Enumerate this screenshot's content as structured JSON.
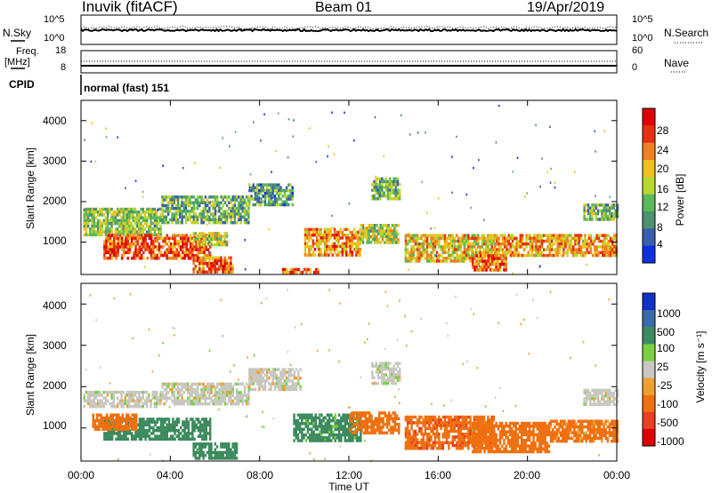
{
  "header": {
    "title": "Inuvik (fitACF)",
    "beam": "Beam 01",
    "date": "19/Apr/2019"
  },
  "noise_panel": {
    "left_label": "N.Sky",
    "right_label": "N.Search",
    "left_ticks": [
      "10^5",
      "10^0"
    ],
    "right_ticks": [
      "10^5",
      "10^0"
    ]
  },
  "freq_panel": {
    "left_label_1": "Freq.",
    "left_label_2": "[MHz]",
    "right_label": "Nave",
    "left_ticks": [
      "18",
      "8"
    ],
    "right_ticks": [
      "60",
      "0"
    ],
    "freq_mhz": 10.5,
    "nave": 20
  },
  "cpid": {
    "label": "CPID",
    "value": "normal (fast) 151"
  },
  "x_axis": {
    "label": "Time UT",
    "ticks": [
      "00:00",
      "04:00",
      "08:00",
      "12:00",
      "16:00",
      "20:00",
      "00:00"
    ],
    "range_hours": [
      0,
      24
    ]
  },
  "colors": {
    "power": [
      "#1030e0",
      "#3a5fb0",
      "#4f9070",
      "#5cb85c",
      "#b8d830",
      "#f0c020",
      "#f08020",
      "#e83010",
      "#e00000"
    ],
    "velocity": [
      "#1030c8",
      "#3a6aa8",
      "#3d8b5e",
      "#7bd040",
      "#c8c8c0",
      "#f0a030",
      "#f07010",
      "#e84020",
      "#e00000"
    ]
  },
  "chart_data": [
    {
      "type": "heatmap",
      "title": "",
      "xlabel": "",
      "ylabel": "Slant Range [km]",
      "y_ticks": [
        "1000",
        "2000",
        "3000",
        "4000"
      ],
      "ylim": [
        200,
        4500
      ],
      "xlim": [
        0,
        24
      ],
      "colorbar_label": "Power [dB]",
      "colorbar_ticks": [
        "4",
        "8",
        "12",
        "16",
        "20",
        "24",
        "28"
      ],
      "colorbar_range": [
        0,
        32
      ],
      "echo_regions": [
        {
          "t0": 0.1,
          "t1": 3.6,
          "r0": 1200,
          "r1": 1850,
          "value": 14
        },
        {
          "t0": 3.6,
          "t1": 7.5,
          "r0": 1500,
          "r1": 2150,
          "value": 12
        },
        {
          "t0": 7.5,
          "t1": 9.5,
          "r0": 1900,
          "r1": 2450,
          "value": 10
        },
        {
          "t0": 1.0,
          "t1": 5.8,
          "r0": 600,
          "r1": 1200,
          "value": 26
        },
        {
          "t0": 5.0,
          "t1": 6.5,
          "r0": 900,
          "r1": 1250,
          "value": 16
        },
        {
          "t0": 5.0,
          "t1": 6.8,
          "r0": 250,
          "r1": 650,
          "value": 24
        },
        {
          "t0": 9.0,
          "t1": 10.6,
          "r0": 220,
          "r1": 360,
          "value": 25
        },
        {
          "t0": 10.0,
          "t1": 12.5,
          "r0": 700,
          "r1": 1350,
          "value": 22
        },
        {
          "t0": 12.5,
          "t1": 14.2,
          "r0": 1000,
          "r1": 1450,
          "value": 16
        },
        {
          "t0": 13.0,
          "t1": 14.3,
          "r0": 2100,
          "r1": 2600,
          "value": 13
        },
        {
          "t0": 14.5,
          "t1": 18.5,
          "r0": 500,
          "r1": 1200,
          "value": 19
        },
        {
          "t0": 17.5,
          "t1": 19.0,
          "r0": 300,
          "r1": 700,
          "value": 25
        },
        {
          "t0": 18.5,
          "t1": 24.0,
          "r0": 650,
          "r1": 1200,
          "value": 21
        },
        {
          "t0": 22.5,
          "t1": 24.0,
          "r0": 1550,
          "r1": 1950,
          "value": 13
        }
      ]
    },
    {
      "type": "heatmap",
      "title": "",
      "xlabel": "Time UT",
      "ylabel": "Slant Range [km]",
      "y_ticks": [
        "1000",
        "2000",
        "3000",
        "4000"
      ],
      "ylim": [
        200,
        4500
      ],
      "xlim": [
        0,
        24
      ],
      "colorbar_label": "Velocity [m s⁻¹]",
      "colorbar_ticks": [
        "1000",
        "500",
        "100",
        "25",
        "-25",
        "-100",
        "-500",
        "-1000"
      ],
      "colorbar_range": [
        1000,
        -1000
      ],
      "echo_regions": [
        {
          "t0": 0.1,
          "t1": 3.6,
          "r0": 1500,
          "r1": 1900,
          "value": 0
        },
        {
          "t0": 3.6,
          "t1": 7.5,
          "r0": 1600,
          "r1": 2100,
          "value": 0
        },
        {
          "t0": 7.5,
          "t1": 9.8,
          "r0": 1900,
          "r1": 2450,
          "value": 0
        },
        {
          "t0": 1.0,
          "t1": 5.8,
          "r0": 700,
          "r1": 1250,
          "value": 200
        },
        {
          "t0": 0.5,
          "t1": 2.5,
          "r0": 1000,
          "r1": 1350,
          "value": -300
        },
        {
          "t0": 5.0,
          "t1": 7.0,
          "r0": 250,
          "r1": 650,
          "value": 200
        },
        {
          "t0": 9.5,
          "t1": 12.5,
          "r0": 700,
          "r1": 1350,
          "value": 150
        },
        {
          "t0": 12.0,
          "t1": 14.2,
          "r0": 900,
          "r1": 1400,
          "value": -200
        },
        {
          "t0": 13.0,
          "t1": 14.3,
          "r0": 2100,
          "r1": 2600,
          "value": 0
        },
        {
          "t0": 14.5,
          "t1": 18.5,
          "r0": 500,
          "r1": 1300,
          "value": -400
        },
        {
          "t0": 17.5,
          "t1": 21.0,
          "r0": 400,
          "r1": 1150,
          "value": -250
        },
        {
          "t0": 21.0,
          "t1": 24.0,
          "r0": 650,
          "r1": 1200,
          "value": -150
        },
        {
          "t0": 22.5,
          "t1": 24.0,
          "r0": 1600,
          "r1": 1950,
          "value": 0
        }
      ]
    }
  ]
}
